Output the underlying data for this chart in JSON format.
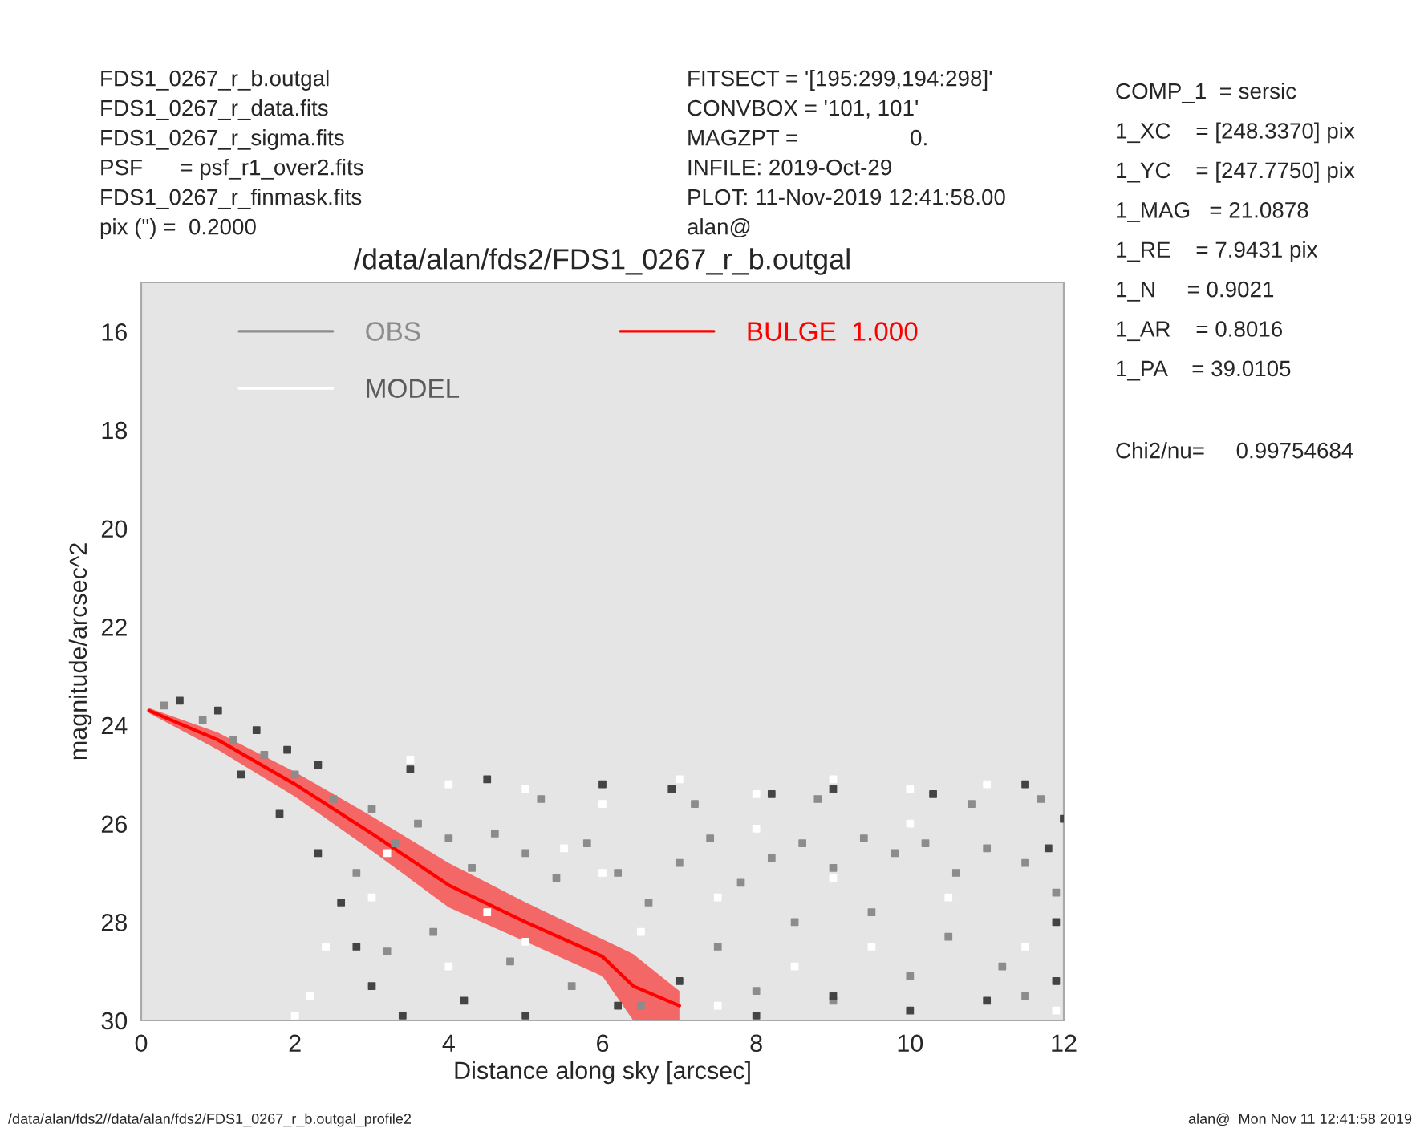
{
  "chart_data": {
    "type": "scatter",
    "title": "/data/alan/fds2/FDS1_0267_r_b.outgal",
    "xlabel": "Distance along sky [arcsec]",
    "ylabel": "magnitude/arcsec^2",
    "annotations": [
      "FDS1_0267_r_b.outgal",
      "FDS1_0267_r_data.fits",
      "FDS1_0267_r_sigma.fits",
      "PSF      = psf_r1_over2.fits",
      "FDS1_0267_r_finmask.fits",
      "pix (\") =  0.2000",
      "FITSECT = '[195:299,194:298]'",
      "CONVBOX = '101, 101'",
      "MAGZPT =                  0.",
      "INFILE: 2019-Oct-29",
      "PLOT: 11-Nov-2019 12:41:58.00",
      "alan@",
      "COMP_1  = sersic",
      "1_XC    = [248.3370] pix",
      "1_YC    = [247.7750] pix",
      "1_MAG   = 21.0878",
      "1_RE    = 7.9431 pix",
      "1_N     = 0.9021",
      "1_AR    = 0.8016",
      "1_PA    = 39.0105",
      "Chi2/nu=     0.99754684",
      "/data/alan/fds2//data/alan/fds2/FDS1_0267_r_b.outgal_profile2",
      "alan@  Mon Nov 11 12:41:58 2019"
    ],
    "xlim": [
      0,
      12
    ],
    "ylim": [
      30,
      15
    ],
    "xticks": [
      0,
      2,
      4,
      6,
      8,
      10,
      12
    ],
    "yticks": [
      16,
      18,
      20,
      22,
      24,
      26,
      28,
      30
    ],
    "grid": false,
    "legend": "top left",
    "series": [
      {
        "name": "OBS",
        "color": "#8c8c8c",
        "marker": "square",
        "x": [
          0.3,
          0.8,
          1.2,
          1.6,
          2.0,
          2.5,
          3.0,
          3.3,
          3.6,
          4.0,
          4.3,
          4.6,
          5.0,
          5.4,
          5.8,
          6.2,
          6.6,
          7.0,
          7.4,
          7.8,
          8.2,
          8.6,
          9.0,
          9.4,
          9.8,
          10.2,
          10.6,
          11.0,
          11.5,
          11.9,
          3.8,
          4.8,
          5.6,
          6.5,
          7.5,
          8.5,
          9.5,
          10.5,
          11.2,
          8.0,
          9.0,
          10.0,
          11.5,
          2.8,
          3.2,
          7.2,
          8.8,
          10.8,
          11.7,
          5.2
        ],
        "values": [
          23.6,
          23.9,
          24.3,
          24.6,
          25.0,
          25.5,
          25.7,
          26.4,
          26.0,
          26.3,
          26.9,
          26.2,
          26.6,
          27.1,
          26.4,
          27.0,
          27.6,
          26.8,
          26.3,
          27.2,
          26.7,
          26.4,
          26.9,
          26.3,
          26.6,
          26.4,
          27.0,
          26.5,
          26.8,
          27.4,
          28.2,
          28.8,
          29.3,
          29.7,
          28.5,
          28.0,
          27.8,
          28.3,
          28.9,
          29.4,
          29.6,
          29.1,
          29.5,
          27.0,
          28.6,
          25.6,
          25.5,
          25.6,
          25.5,
          25.5
        ]
      },
      {
        "name": "MODEL",
        "color": "#ffffff",
        "marker": "square",
        "x": [
          2.4,
          2.2,
          3.5,
          4.0,
          5.0,
          6.0,
          7.0,
          8.0,
          9.0,
          10.0,
          11.0,
          3.0,
          4.0,
          5.0,
          6.5,
          7.5,
          8.5,
          9.5,
          10.5,
          11.5,
          7.5,
          9.0,
          10.0,
          2.0,
          5.5,
          3.2,
          4.5,
          6.0,
          8.0,
          11.9
        ],
        "values": [
          28.5,
          29.5,
          24.7,
          25.2,
          25.3,
          25.6,
          25.1,
          25.4,
          25.1,
          25.3,
          25.2,
          27.5,
          28.9,
          28.4,
          28.2,
          27.5,
          28.9,
          28.5,
          27.5,
          28.5,
          29.7,
          27.1,
          26.0,
          29.9,
          26.5,
          26.6,
          27.8,
          27.0,
          26.1,
          29.8
        ]
      },
      {
        "color": "#444444",
        "marker": "square",
        "x": [
          0.5,
          1.0,
          1.5,
          1.9,
          2.3,
          1.3,
          1.8,
          2.3,
          2.6,
          2.8,
          3.0,
          3.4,
          4.2,
          5.0,
          6.2,
          7.0,
          8.0,
          9.0,
          10.0,
          11.0,
          11.9,
          12.0,
          11.5,
          10.3,
          9.0,
          8.2,
          6.9,
          6.0,
          4.5,
          3.5,
          11.8,
          11.9
        ],
        "values": [
          23.5,
          23.7,
          24.1,
          24.5,
          24.8,
          25.0,
          25.8,
          26.6,
          27.6,
          28.5,
          29.3,
          29.9,
          29.6,
          29.9,
          29.7,
          29.2,
          29.9,
          29.5,
          29.8,
          29.6,
          29.2,
          25.9,
          25.2,
          25.4,
          25.3,
          25.4,
          25.3,
          25.2,
          25.1,
          24.9,
          26.5,
          28.0
        ]
      },
      {
        "name": "BULGE  1.000",
        "type": "line",
        "color": "#ff0000",
        "marker": "none",
        "x": [
          0.1,
          1,
          2,
          3,
          4,
          5,
          6,
          6.4,
          7
        ],
        "values": [
          23.7,
          24.3,
          25.2,
          26.2,
          27.25,
          28.0,
          28.7,
          29.3,
          29.7
        ],
        "lower": [
          23.65,
          24.15,
          24.95,
          25.85,
          26.8,
          27.6,
          28.35,
          28.65,
          29.4
        ],
        "upper": [
          23.75,
          24.5,
          25.45,
          26.55,
          27.7,
          28.4,
          29.1,
          30,
          30
        ]
      }
    ]
  }
}
